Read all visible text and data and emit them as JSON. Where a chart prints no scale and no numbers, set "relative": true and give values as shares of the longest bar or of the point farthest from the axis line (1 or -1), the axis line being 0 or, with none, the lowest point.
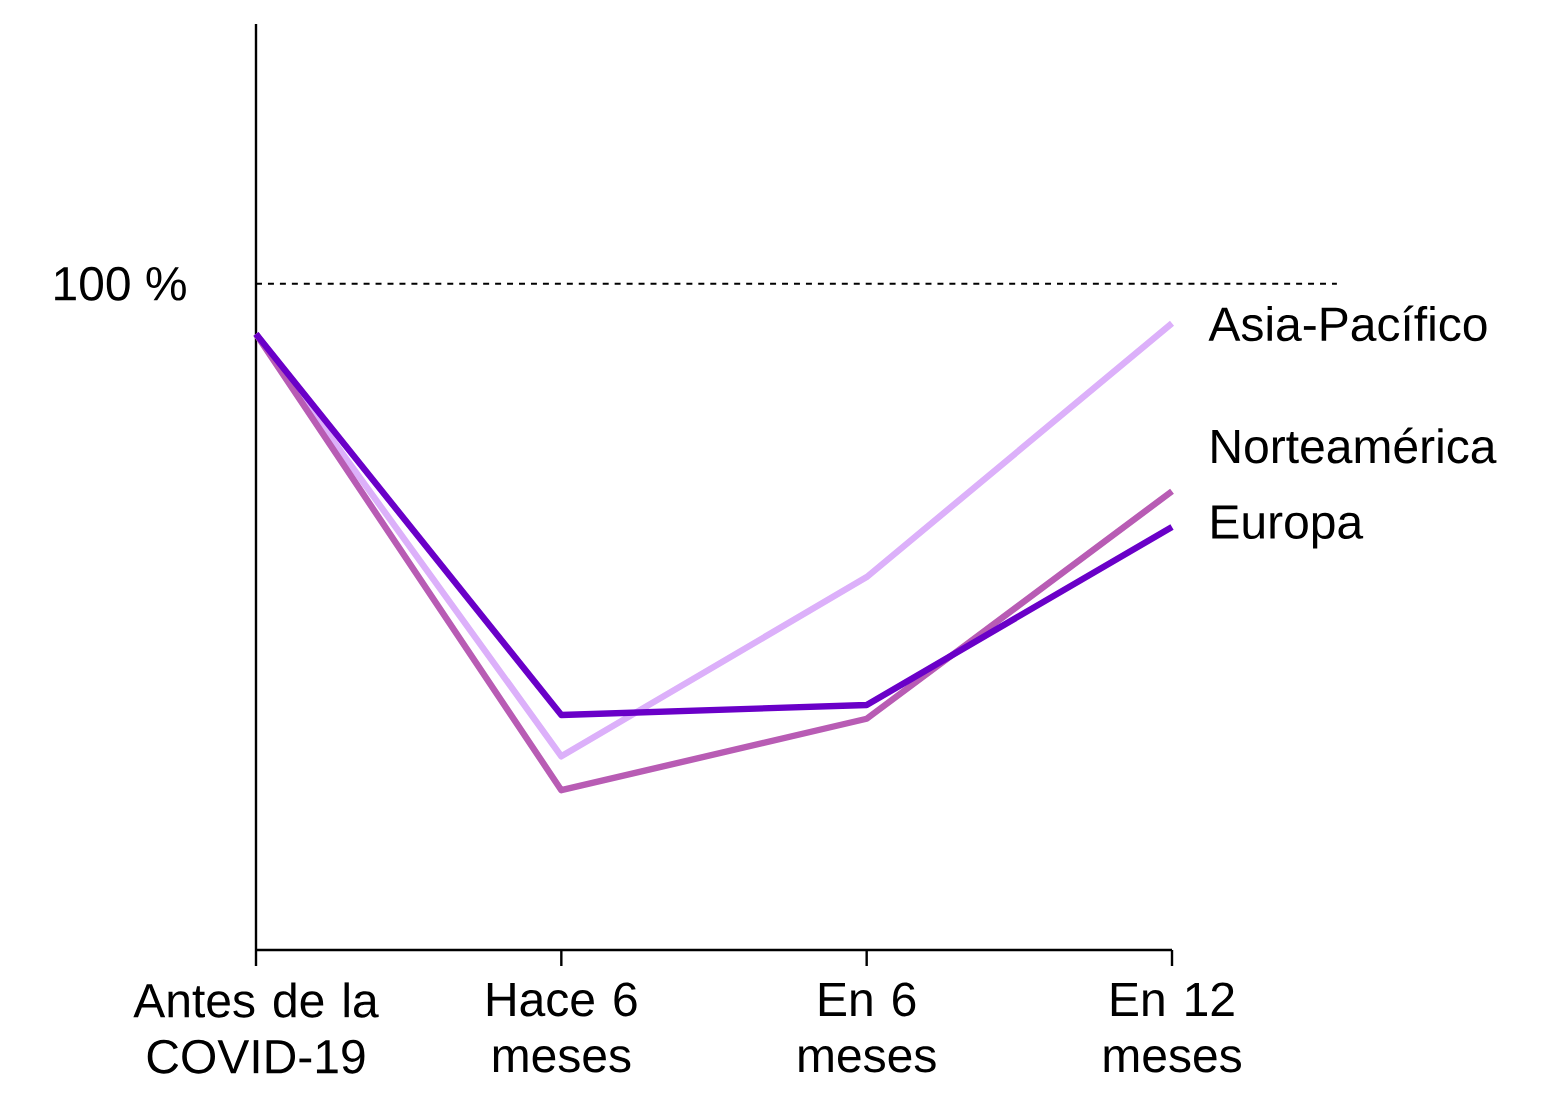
{
  "chart_data": {
    "type": "line",
    "relative": true,
    "categories": [
      "Antes de la COVID-19",
      "Hace 6 meses",
      "En 6 meses",
      "En 12 meses"
    ],
    "series": [
      {
        "name": "Asia-Pacífico",
        "color": "#dcb0fa",
        "values": [
          0.983,
          0.309,
          0.595,
          1
        ]
      },
      {
        "name": "Norteamérica",
        "color": "#b85cb4",
        "values": [
          0.983,
          0.255,
          0.369,
          0.732
        ]
      },
      {
        "name": "Europa",
        "color": "#6a00c8",
        "values": [
          0.983,
          0.375,
          0.391,
          0.675
        ]
      }
    ],
    "ref_lines": [
      {
        "axis": "y",
        "value": 1.063,
        "color": "#000000",
        "line_style": "dashed"
      }
    ],
    "annotations": [
      "100 %"
    ],
    "marker": "none",
    "line_style": "solid"
  }
}
